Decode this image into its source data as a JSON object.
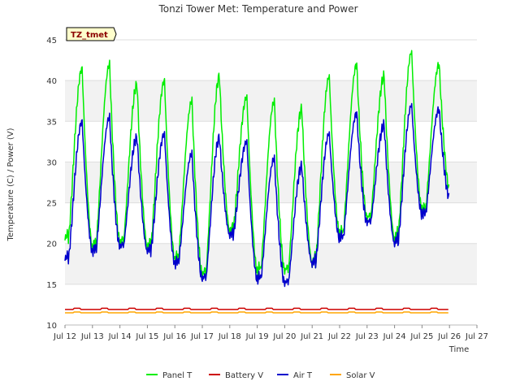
{
  "chart_data": {
    "type": "line",
    "title": "Tonzi Tower Met: Temperature and Power",
    "xlabel": "Time",
    "ylabel": "Temperature (C) / Power (V)",
    "badge": "TZ_tmet",
    "xlim": [
      12,
      27
    ],
    "ylim": [
      10,
      45
    ],
    "x_ticks": [
      12,
      13,
      14,
      15,
      16,
      17,
      18,
      19,
      20,
      21,
      22,
      23,
      24,
      25,
      26,
      27
    ],
    "x_tick_labels": [
      "Jul 12",
      "Jul 13",
      "Jul 14",
      "Jul 15",
      "Jul 16",
      "Jul 17",
      "Jul 18",
      "Jul 19",
      "Jul 20",
      "Jul 21",
      "Jul 22",
      "Jul 23",
      "Jul 24",
      "Jul 25",
      "Jul 26",
      "Jul 27"
    ],
    "y_ticks": [
      10,
      15,
      20,
      25,
      30,
      35,
      40,
      45
    ],
    "y_tick_labels": [
      "10",
      "15",
      "20",
      "25",
      "30",
      "35",
      "40",
      "45"
    ],
    "daily": {
      "days": [
        12,
        13,
        14,
        15,
        16,
        17,
        18,
        19,
        20,
        21,
        22,
        23,
        24,
        25
      ],
      "panel_min": [
        20.5,
        19.5,
        20.0,
        19.5,
        18.0,
        16.0,
        21.5,
        16.5,
        16.5,
        17.5,
        21.0,
        23.0,
        20.5,
        24.0
      ],
      "panel_max": [
        41.5,
        42.0,
        39.5,
        40.0,
        37.5,
        40.5,
        38.0,
        37.5,
        36.5,
        40.5,
        42.0,
        40.5,
        43.5,
        42.0
      ],
      "air_min": [
        18.0,
        19.0,
        19.5,
        19.0,
        17.5,
        15.5,
        21.0,
        15.5,
        15.0,
        17.5,
        20.5,
        22.5,
        20.0,
        23.5
      ],
      "air_max": [
        35.0,
        35.5,
        33.0,
        33.5,
        31.0,
        33.0,
        32.5,
        30.5,
        29.5,
        33.5,
        36.0,
        34.5,
        37.0,
        36.5
      ],
      "end_x": 26.0,
      "panel_end": 26.5,
      "air_end": 25.5
    },
    "battery_v": 11.9,
    "solar_v": 11.5,
    "series": [
      {
        "name": "Panel T",
        "color": "#00ee00"
      },
      {
        "name": "Battery V",
        "color": "#cc0000"
      },
      {
        "name": "Air T",
        "color": "#0000cc"
      },
      {
        "name": "Solar V",
        "color": "#ffa500"
      }
    ],
    "legend_position": "bottom-center"
  }
}
